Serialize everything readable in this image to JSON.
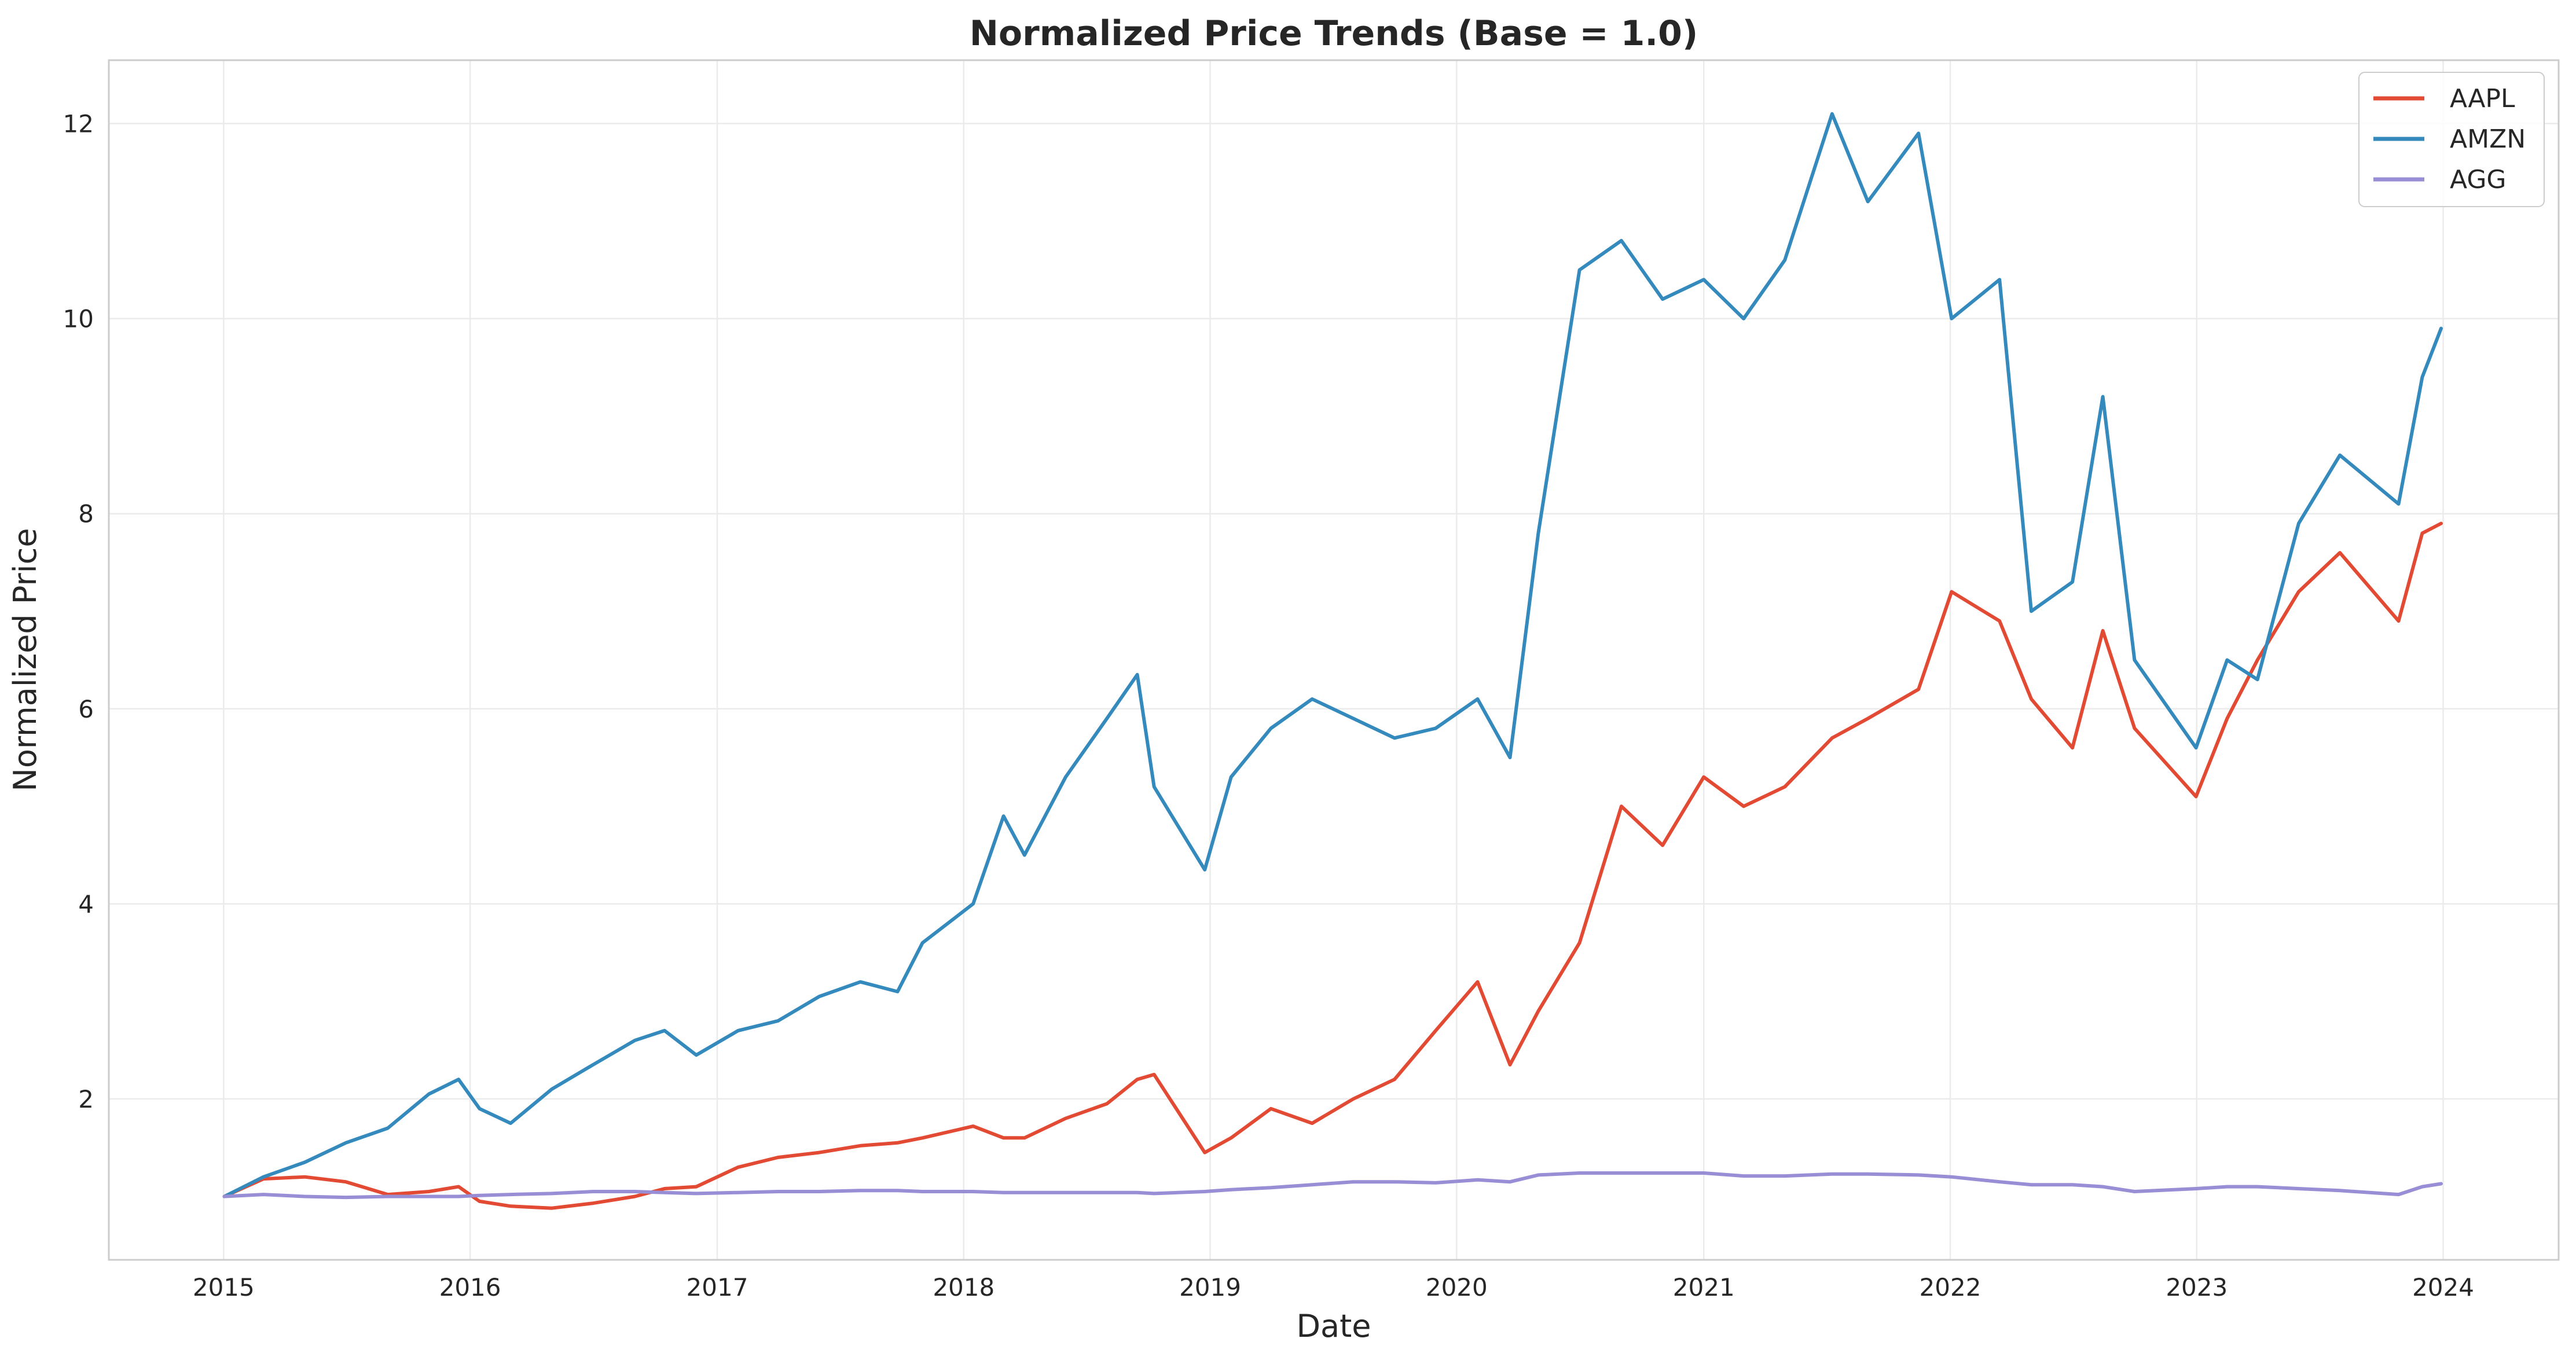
{
  "chart_data": {
    "type": "line",
    "title": "Normalized Price Trends (Base = 1.0)",
    "xlabel": "Date",
    "ylabel": "Normalized Price",
    "x_ticks": [
      "2015",
      "2016",
      "2017",
      "2018",
      "2019",
      "2020",
      "2021",
      "2022",
      "2023",
      "2024"
    ],
    "y_ticks": [
      "2",
      "4",
      "6",
      "8",
      "10",
      "12"
    ],
    "xlim": [
      "2014-07-15",
      "2024-06-20"
    ],
    "ylim": [
      0.35,
      12.65
    ],
    "grid": true,
    "legend_position": "top-right",
    "x": [
      "2015-01-02",
      "2015-03-01",
      "2015-05-01",
      "2015-07-01",
      "2015-09-01",
      "2015-11-01",
      "2015-12-15",
      "2016-01-15",
      "2016-03-01",
      "2016-05-01",
      "2016-07-01",
      "2016-09-01",
      "2016-10-15",
      "2016-12-01",
      "2017-02-01",
      "2017-04-01",
      "2017-06-01",
      "2017-08-01",
      "2017-09-25",
      "2017-11-01",
      "2018-01-15",
      "2018-03-01",
      "2018-04-01",
      "2018-06-01",
      "2018-08-01",
      "2018-09-15",
      "2018-10-10",
      "2018-12-24",
      "2019-02-01",
      "2019-04-01",
      "2019-06-01",
      "2019-08-01",
      "2019-10-01",
      "2019-12-01",
      "2020-02-01",
      "2020-03-20",
      "2020-05-01",
      "2020-07-01",
      "2020-09-01",
      "2020-11-01",
      "2021-01-01",
      "2021-03-01",
      "2021-05-01",
      "2021-07-10",
      "2021-09-01",
      "2021-11-15",
      "2022-01-03",
      "2022-03-15",
      "2022-05-01",
      "2022-07-01",
      "2022-08-15",
      "2022-10-01",
      "2022-12-31",
      "2023-02-15",
      "2023-04-01",
      "2023-06-01",
      "2023-08-01",
      "2023-10-27",
      "2023-12-01",
      "2023-12-29"
    ],
    "series": [
      {
        "name": "AAPL",
        "color": "#E24A33",
        "values": [
          1.0,
          1.18,
          1.2,
          1.15,
          1.02,
          1.05,
          1.1,
          0.95,
          0.9,
          0.88,
          0.93,
          1.0,
          1.08,
          1.1,
          1.3,
          1.4,
          1.45,
          1.52,
          1.55,
          1.6,
          1.72,
          1.6,
          1.6,
          1.8,
          1.95,
          2.2,
          2.25,
          1.45,
          1.6,
          1.9,
          1.75,
          2.0,
          2.2,
          2.7,
          3.2,
          2.35,
          2.9,
          3.6,
          5.0,
          4.6,
          5.3,
          5.0,
          5.2,
          5.7,
          5.9,
          6.2,
          7.2,
          6.9,
          6.1,
          5.6,
          6.8,
          5.8,
          5.1,
          5.9,
          6.5,
          7.2,
          7.6,
          6.9,
          7.8,
          7.9
        ]
      },
      {
        "name": "AMZN",
        "color": "#348ABD",
        "values": [
          1.0,
          1.2,
          1.35,
          1.55,
          1.7,
          2.05,
          2.2,
          1.9,
          1.75,
          2.1,
          2.35,
          2.6,
          2.7,
          2.45,
          2.7,
          2.8,
          3.05,
          3.2,
          3.1,
          3.6,
          4.0,
          4.9,
          4.5,
          5.3,
          5.9,
          6.35,
          5.2,
          4.35,
          5.3,
          5.8,
          6.1,
          5.9,
          5.7,
          5.8,
          6.1,
          5.5,
          7.8,
          10.5,
          10.8,
          10.2,
          10.4,
          10.0,
          10.6,
          12.1,
          11.2,
          11.9,
          10.0,
          10.4,
          7.0,
          7.3,
          9.2,
          6.5,
          5.6,
          6.5,
          6.3,
          7.9,
          8.6,
          8.1,
          9.4,
          9.9
        ]
      },
      {
        "name": "AGG",
        "color": "#988ED5",
        "values": [
          1.0,
          1.02,
          1.0,
          0.99,
          1.0,
          1.0,
          1.0,
          1.01,
          1.02,
          1.03,
          1.05,
          1.05,
          1.04,
          1.03,
          1.04,
          1.05,
          1.05,
          1.06,
          1.06,
          1.05,
          1.05,
          1.04,
          1.04,
          1.04,
          1.04,
          1.04,
          1.03,
          1.05,
          1.07,
          1.09,
          1.12,
          1.15,
          1.15,
          1.14,
          1.17,
          1.15,
          1.22,
          1.24,
          1.24,
          1.24,
          1.24,
          1.21,
          1.21,
          1.23,
          1.23,
          1.22,
          1.2,
          1.15,
          1.12,
          1.12,
          1.1,
          1.05,
          1.08,
          1.1,
          1.1,
          1.08,
          1.06,
          1.02,
          1.1,
          1.13
        ]
      }
    ]
  }
}
